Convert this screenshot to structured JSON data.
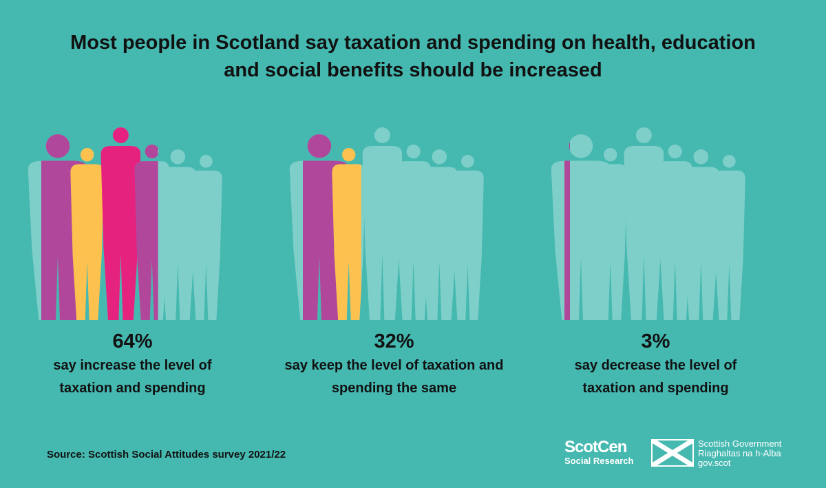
{
  "chart_data": {
    "type": "pictogram",
    "title": "Most people in Scotland say taxation and spending on health, education and social benefits should be increased",
    "categories": [
      "say increase the level of taxation and spending",
      "say keep the level of taxation and spending the same",
      "say decrease the level of taxation and spending"
    ],
    "values": [
      64,
      32,
      3
    ],
    "value_labels": [
      "64%",
      "32%",
      "3%"
    ],
    "xlim": [
      0,
      100
    ],
    "colors": [
      "#b1479a",
      "#fcc14f",
      "#e5237e",
      "#b1479a",
      "#b1479a",
      "#b1479a"
    ],
    "empty_color": "#7ecfc9",
    "source": "Source: Scottish Social Attitudes survey 2021/22"
  },
  "logos": {
    "scotcen": "ScotCen",
    "scotcen_sub": "Social Research",
    "gov_lines": [
      "Scottish Government",
      "Riaghaltas na h-Alba",
      "gov.scot"
    ]
  }
}
